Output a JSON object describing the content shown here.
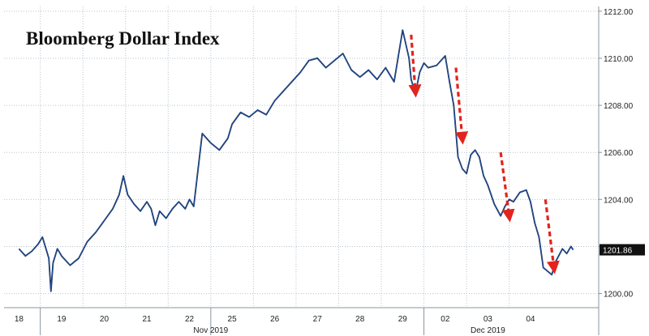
{
  "chart_data": {
    "type": "line",
    "title": "Bloomberg Dollar Index",
    "xlabel": "",
    "ylabel": "",
    "ylim": [
      1199.4,
      1212.2
    ],
    "y_ticks": [
      1200,
      1202,
      1204,
      1206,
      1208,
      1210,
      1212
    ],
    "y_tick_labels": [
      "1200.00",
      "1202.00",
      "1204.00",
      "1206.00",
      "1208.00",
      "1210.00",
      "1212.00"
    ],
    "x_days": [
      "18",
      "19",
      "20",
      "21",
      "22",
      "25",
      "26",
      "27",
      "28",
      "29",
      "02",
      "03",
      "04"
    ],
    "month_labels": [
      "Nov 2019",
      "Dec 2019"
    ],
    "last_value": 1201.86,
    "last_value_label": "1201.86",
    "grid": true,
    "line_color": "#1f4e9c",
    "arrow_color": "#e3231d",
    "series": [
      {
        "x": [
          0,
          0.15,
          0.3,
          0.45,
          0.55,
          0.7,
          0.75,
          0.8,
          0.9,
          1.0,
          1.2,
          1.4,
          1.6,
          1.8,
          2.0,
          2.2,
          2.35,
          2.45,
          2.55,
          2.7,
          2.85,
          3.0,
          3.1,
          3.2,
          3.3,
          3.45,
          3.6,
          3.75,
          3.9,
          4.0,
          4.1,
          4.3,
          4.5,
          4.7,
          4.9,
          5.0,
          5.2,
          5.4,
          5.6,
          5.8,
          6.0,
          6.2,
          6.4,
          6.6,
          6.8,
          7.0,
          7.2,
          7.4,
          7.6,
          7.8,
          8.0,
          8.2,
          8.4,
          8.6,
          8.8,
          9.0,
          9.15,
          9.2,
          9.3,
          9.4,
          9.5,
          9.6,
          9.8,
          10.0,
          10.1,
          10.2,
          10.3,
          10.4,
          10.5,
          10.6,
          10.7,
          10.8,
          10.9,
          11.0,
          11.15,
          11.3,
          11.4,
          11.5,
          11.6,
          11.75,
          11.9,
          12.0,
          12.1,
          12.2,
          12.3,
          12.5,
          12.6,
          12.75,
          12.85,
          12.95,
          13.0
        ],
        "y": [
          1201.9,
          1201.6,
          1201.8,
          1202.1,
          1202.4,
          1201.5,
          1200.1,
          1201.3,
          1201.9,
          1201.6,
          1201.2,
          1201.5,
          1202.2,
          1202.6,
          1203.1,
          1203.6,
          1204.2,
          1205.0,
          1204.2,
          1203.8,
          1203.5,
          1203.9,
          1203.6,
          1202.9,
          1203.5,
          1203.2,
          1203.6,
          1203.9,
          1203.6,
          1204.0,
          1203.7,
          1206.8,
          1206.4,
          1206.1,
          1206.6,
          1207.2,
          1207.7,
          1207.5,
          1207.8,
          1207.6,
          1208.2,
          1208.6,
          1209.0,
          1209.4,
          1209.9,
          1210.0,
          1209.6,
          1209.9,
          1210.2,
          1209.5,
          1209.2,
          1209.5,
          1209.1,
          1209.6,
          1209.0,
          1211.2,
          1210.0,
          1209.1,
          1208.5,
          1209.4,
          1209.8,
          1209.6,
          1209.7,
          1210.1,
          1209.0,
          1208.0,
          1205.8,
          1205.3,
          1205.1,
          1205.9,
          1206.1,
          1205.8,
          1205.0,
          1204.6,
          1203.8,
          1203.3,
          1203.7,
          1204.0,
          1203.9,
          1204.3,
          1204.4,
          1203.9,
          1203.0,
          1202.4,
          1201.1,
          1200.8,
          1201.4,
          1201.9,
          1201.7,
          1202.0,
          1201.86
        ]
      }
    ],
    "annotations": [
      {
        "type": "arrow",
        "x_start": 9.2,
        "y_start": 1211.0,
        "x_end": 9.3,
        "y_end": 1208.6
      },
      {
        "type": "arrow",
        "x_start": 10.25,
        "y_start": 1209.6,
        "x_end": 10.4,
        "y_end": 1206.6
      },
      {
        "type": "arrow",
        "x_start": 11.3,
        "y_start": 1206.0,
        "x_end": 11.5,
        "y_end": 1203.3
      },
      {
        "type": "arrow",
        "x_start": 12.35,
        "y_start": 1204.0,
        "x_end": 12.55,
        "y_end": 1201.1
      }
    ]
  }
}
